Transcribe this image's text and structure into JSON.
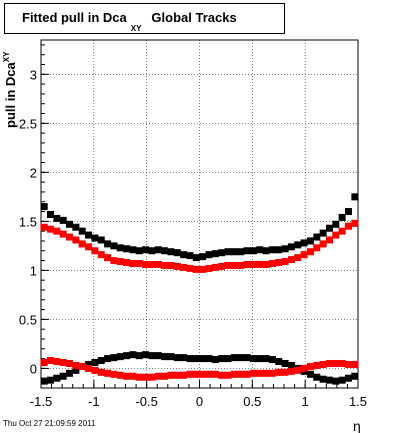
{
  "chart_data": {
    "type": "scatter",
    "title": "Fitted pull in Dca",
    "title_subscript": "XY",
    "title_suffix": "Global Tracks",
    "xlabel": "η",
    "ylabel": "pull in Dca",
    "ylabel_subscript": "XY",
    "xlim": [
      -1.5,
      1.5
    ],
    "ylim": [
      -0.2,
      3.35
    ],
    "xticks": [
      -1.5,
      -1,
      -0.5,
      0,
      0.5,
      1,
      1.5
    ],
    "xtick_labels": [
      "-1.5",
      "-1",
      "-0.5",
      "0",
      "0.5",
      "1",
      "1.5"
    ],
    "yticks": [
      0,
      0.5,
      1,
      1.5,
      2,
      2.5,
      3
    ],
    "ytick_labels": [
      "0",
      "0.5",
      "1",
      "1.5",
      "2",
      "2.5",
      "3"
    ],
    "grid": true,
    "legend": "none",
    "colors": {
      "black_series": "#000000",
      "red_series": "#ff0000"
    },
    "x": [
      -1.47,
      -1.41,
      -1.35,
      -1.29,
      -1.23,
      -1.17,
      -1.11,
      -1.05,
      -0.99,
      -0.93,
      -0.87,
      -0.81,
      -0.75,
      -0.69,
      -0.63,
      -0.57,
      -0.51,
      -0.45,
      -0.39,
      -0.33,
      -0.27,
      -0.21,
      -0.15,
      -0.09,
      -0.03,
      0.03,
      0.09,
      0.15,
      0.21,
      0.27,
      0.33,
      0.39,
      0.45,
      0.51,
      0.57,
      0.63,
      0.69,
      0.75,
      0.81,
      0.87,
      0.93,
      0.99,
      1.05,
      1.11,
      1.17,
      1.23,
      1.29,
      1.35,
      1.41,
      1.47
    ],
    "series": [
      {
        "color": "#000000",
        "values": [
          1.65,
          1.57,
          1.53,
          1.51,
          1.47,
          1.44,
          1.4,
          1.36,
          1.33,
          1.31,
          1.27,
          1.25,
          1.23,
          1.22,
          1.21,
          1.2,
          1.21,
          1.2,
          1.21,
          1.2,
          1.19,
          1.18,
          1.16,
          1.15,
          1.13,
          1.14,
          1.16,
          1.17,
          1.18,
          1.19,
          1.19,
          1.19,
          1.2,
          1.2,
          1.21,
          1.2,
          1.21,
          1.21,
          1.22,
          1.24,
          1.26,
          1.28,
          1.3,
          1.34,
          1.38,
          1.43,
          1.47,
          1.54,
          1.6,
          1.75
        ]
      },
      {
        "color": "#ff0000",
        "values": [
          1.44,
          1.42,
          1.4,
          1.37,
          1.34,
          1.31,
          1.27,
          1.24,
          1.2,
          1.16,
          1.13,
          1.1,
          1.09,
          1.08,
          1.07,
          1.07,
          1.06,
          1.06,
          1.06,
          1.05,
          1.05,
          1.04,
          1.03,
          1.02,
          1.01,
          1.01,
          1.02,
          1.03,
          1.04,
          1.05,
          1.05,
          1.05,
          1.06,
          1.06,
          1.06,
          1.06,
          1.07,
          1.08,
          1.09,
          1.11,
          1.13,
          1.16,
          1.19,
          1.23,
          1.27,
          1.31,
          1.36,
          1.4,
          1.45,
          1.48
        ]
      },
      {
        "color": "#000000",
        "values": [
          -0.13,
          -0.12,
          -0.1,
          -0.08,
          -0.05,
          -0.02,
          0.02,
          0.04,
          0.06,
          0.08,
          0.1,
          0.11,
          0.12,
          0.13,
          0.14,
          0.13,
          0.14,
          0.13,
          0.13,
          0.12,
          0.12,
          0.11,
          0.11,
          0.1,
          0.1,
          0.1,
          0.1,
          0.09,
          0.1,
          0.1,
          0.11,
          0.11,
          0.11,
          0.1,
          0.1,
          0.1,
          0.09,
          0.07,
          0.05,
          0.03,
          0.0,
          -0.03,
          -0.06,
          -0.09,
          -0.11,
          -0.12,
          -0.13,
          -0.12,
          -0.1,
          -0.08
        ]
      },
      {
        "color": "#ff0000",
        "values": [
          0.06,
          0.08,
          0.07,
          0.06,
          0.05,
          0.03,
          0.02,
          0.0,
          -0.02,
          -0.04,
          -0.05,
          -0.06,
          -0.07,
          -0.08,
          -0.08,
          -0.09,
          -0.09,
          -0.09,
          -0.08,
          -0.08,
          -0.07,
          -0.07,
          -0.07,
          -0.06,
          -0.06,
          -0.06,
          -0.06,
          -0.06,
          -0.07,
          -0.07,
          -0.06,
          -0.06,
          -0.06,
          -0.05,
          -0.05,
          -0.05,
          -0.05,
          -0.04,
          -0.04,
          -0.03,
          -0.02,
          0.0,
          0.02,
          0.03,
          0.04,
          0.05,
          0.05,
          0.05,
          0.04,
          0.04
        ]
      }
    ]
  },
  "footer": {
    "timestamp": "Thu Oct 27 21:09:59 2011"
  }
}
